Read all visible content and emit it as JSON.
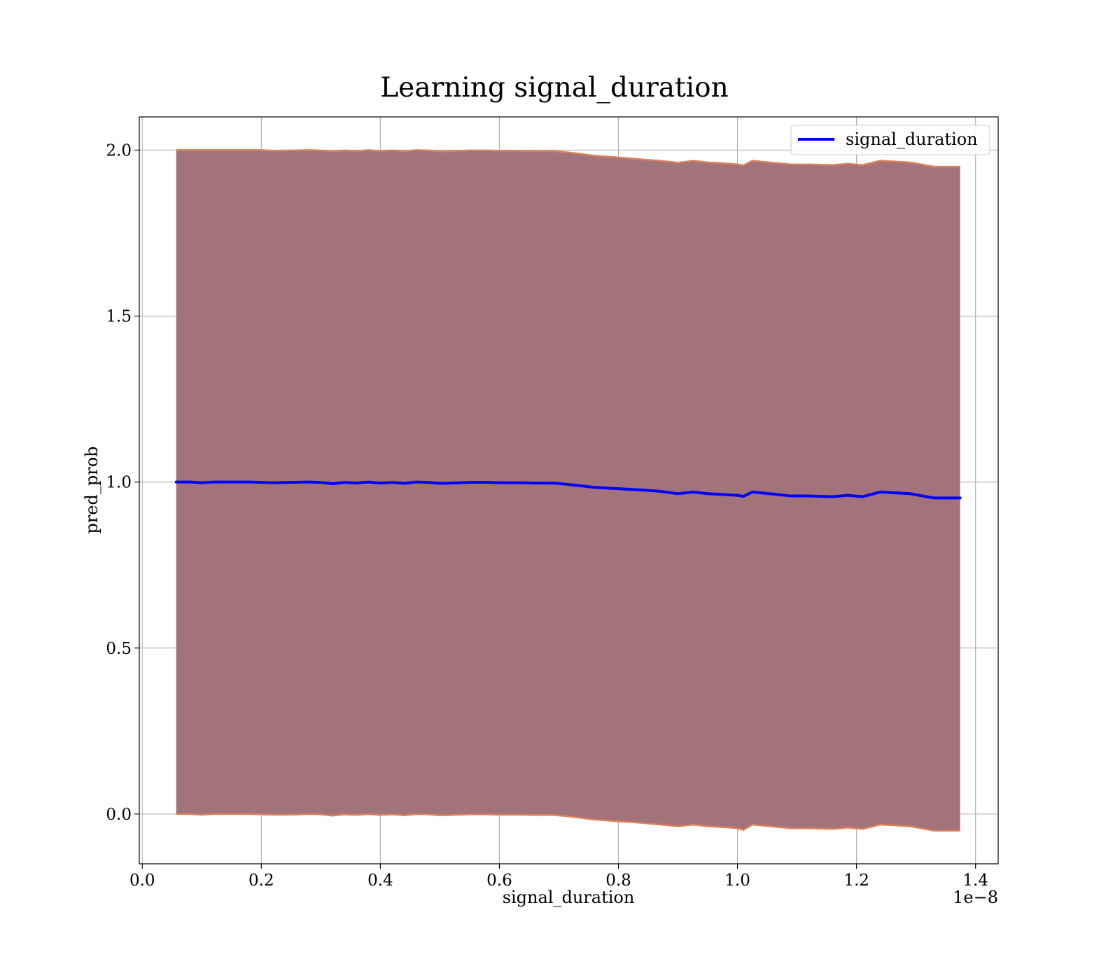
{
  "chart_data": {
    "type": "line",
    "title": "Learning signal_duration",
    "xlabel": "signal_duration",
    "ylabel": "pred_prob",
    "x_offset_label": "1e−8",
    "xlim": [
      -0.005,
      1.438
    ],
    "ylim": [
      -0.15,
      2.1
    ],
    "xticks": [
      0.0,
      0.2,
      0.4,
      0.6,
      0.8,
      1.0,
      1.2,
      1.4
    ],
    "xtick_labels": [
      "0.0",
      "0.2",
      "0.4",
      "0.6",
      "0.8",
      "1.0",
      "1.2",
      "1.4"
    ],
    "yticks": [
      0.0,
      0.5,
      1.0,
      1.5,
      2.0
    ],
    "ytick_labels": [
      "0.0",
      "0.5",
      "1.0",
      "1.5",
      "2.0"
    ],
    "grid": true,
    "legend": {
      "position": "top-right",
      "entries": [
        "signal_duration"
      ]
    },
    "series": [
      {
        "name": "signal_duration",
        "color": "#0000ff",
        "x": [
          0.057,
          0.08,
          0.1,
          0.12,
          0.15,
          0.18,
          0.2,
          0.22,
          0.25,
          0.28,
          0.3,
          0.32,
          0.34,
          0.36,
          0.38,
          0.4,
          0.42,
          0.44,
          0.46,
          0.48,
          0.5,
          0.52,
          0.55,
          0.58,
          0.6,
          0.63,
          0.66,
          0.69,
          0.71,
          0.73,
          0.76,
          0.8,
          0.84,
          0.87,
          0.9,
          0.925,
          0.95,
          0.98,
          1.0,
          1.01,
          1.025,
          1.06,
          1.09,
          1.12,
          1.16,
          1.185,
          1.21,
          1.24,
          1.29,
          1.33,
          1.374
        ],
        "y": [
          1.0,
          1.0,
          0.998,
          1.0,
          1.0,
          1.0,
          0.999,
          0.998,
          0.999,
          1.0,
          0.999,
          0.995,
          0.999,
          0.997,
          1.0,
          0.997,
          0.999,
          0.996,
          1.0,
          0.999,
          0.996,
          0.997,
          0.999,
          0.999,
          0.998,
          0.998,
          0.997,
          0.997,
          0.994,
          0.99,
          0.984,
          0.98,
          0.976,
          0.972,
          0.965,
          0.97,
          0.965,
          0.962,
          0.96,
          0.957,
          0.97,
          0.964,
          0.958,
          0.958,
          0.956,
          0.96,
          0.956,
          0.97,
          0.965,
          0.952,
          0.952
        ]
      }
    ],
    "band": {
      "fill_color": "#a2737b",
      "edge_color": "#d9805c",
      "upper": [
        2.0,
        2.0,
        2.0,
        2.0,
        2.0,
        2.0,
        2.0,
        1.998,
        1.999,
        2.0,
        1.999,
        1.996,
        1.999,
        1.997,
        2.0,
        1.997,
        1.999,
        1.997,
        2.0,
        1.999,
        1.996,
        1.997,
        1.999,
        1.999,
        1.998,
        1.998,
        1.997,
        1.997,
        1.994,
        1.99,
        1.983,
        1.978,
        1.972,
        1.968,
        1.962,
        1.968,
        1.963,
        1.96,
        1.957,
        1.954,
        1.968,
        1.962,
        1.957,
        1.957,
        1.955,
        1.959,
        1.955,
        1.968,
        1.963,
        1.95,
        1.95
      ],
      "lower": [
        0.0,
        0.0,
        -0.002,
        0.0,
        0.0,
        0.0,
        -0.001,
        -0.002,
        -0.002,
        0.0,
        -0.001,
        -0.005,
        -0.001,
        -0.003,
        0.0,
        -0.003,
        -0.001,
        -0.004,
        0.0,
        -0.001,
        -0.004,
        -0.003,
        -0.001,
        -0.001,
        -0.002,
        -0.002,
        -0.003,
        -0.003,
        -0.006,
        -0.01,
        -0.017,
        -0.022,
        -0.027,
        -0.032,
        -0.037,
        -0.032,
        -0.037,
        -0.04,
        -0.043,
        -0.048,
        -0.032,
        -0.038,
        -0.043,
        -0.043,
        -0.045,
        -0.041,
        -0.045,
        -0.032,
        -0.037,
        -0.05,
        -0.05
      ]
    }
  }
}
